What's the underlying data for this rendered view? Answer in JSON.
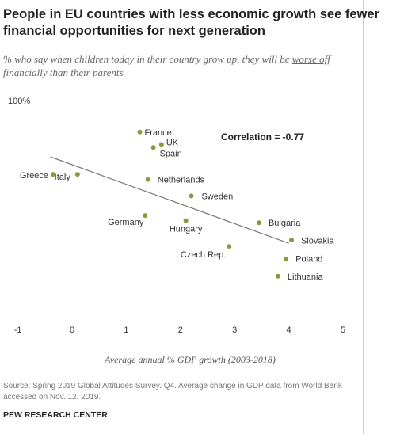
{
  "header": {
    "title": "People in EU countries with less economic growth see fewer financial opportunities for next generation",
    "subtitle_pre": "% who say when children today in their country grow up, they will be ",
    "subtitle_underlined": "worse off",
    "subtitle_post": " financially than their parents"
  },
  "footer": {
    "source": "Source: Spring 2019 Global Attitudes Survey. Q4. Average change in GDP data from World Bank accessed on Nov. 12, 2019.",
    "brand": "PEW RESEARCH CENTER"
  },
  "chart_data": {
    "type": "scatter",
    "title": "People in EU countries with less economic growth see fewer financial opportunities for next generation",
    "xlabel": "Average annual % GDP growth (2003-2018)",
    "ylabel": "",
    "xlim": [
      -1,
      5
    ],
    "ylim": [
      0,
      100
    ],
    "x_ticks": [
      -1,
      0,
      1,
      2,
      3,
      4,
      5
    ],
    "y_top_label": "100%",
    "annotation": "Correlation = -0.77",
    "point_color": "#8a9a3a",
    "line_color": "#777777",
    "grid": false,
    "trendline": {
      "x": [
        -0.4,
        4.0
      ],
      "y": [
        70,
        28
      ]
    },
    "points": [
      {
        "label": "France",
        "x": 1.25,
        "y": 82
      },
      {
        "label": "UK",
        "x": 1.65,
        "y": 76
      },
      {
        "label": "Spain",
        "x": 1.5,
        "y": 74.5
      },
      {
        "label": "Greece",
        "x": -0.35,
        "y": 61.5
      },
      {
        "label": "Italy",
        "x": 0.1,
        "y": 61.5
      },
      {
        "label": "Netherlands",
        "x": 1.4,
        "y": 59
      },
      {
        "label": "Sweden",
        "x": 2.2,
        "y": 51
      },
      {
        "label": "Germany",
        "x": 1.35,
        "y": 41.5
      },
      {
        "label": "Hungary",
        "x": 2.1,
        "y": 39
      },
      {
        "label": "Bulgaria",
        "x": 3.45,
        "y": 38
      },
      {
        "label": "Slovakia",
        "x": 4.05,
        "y": 29.5
      },
      {
        "label": "Czech Rep.",
        "x": 2.9,
        "y": 26.5
      },
      {
        "label": "Poland",
        "x": 3.95,
        "y": 20.5
      },
      {
        "label": "Lithuania",
        "x": 3.8,
        "y": 12
      }
    ]
  }
}
